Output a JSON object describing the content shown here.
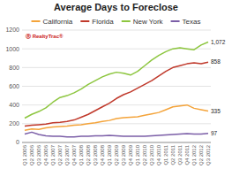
{
  "chart_data": {
    "type": "line",
    "title": "Average Days to Foreclose",
    "categories": [
      "Q1\n2006",
      "Q2\n2006",
      "Q3\n2006",
      "Q4\n2006",
      "Q1\n2007",
      "Q2\n2007",
      "Q3\n2007",
      "Q4\n2007",
      "Q1\n2008",
      "Q2\n2008",
      "Q3\n2008",
      "Q4\n2008",
      "Q1\n2009",
      "Q2\n2009",
      "Q3\n2009",
      "Q4\n2009",
      "Q1\n2010",
      "Q2\n2010",
      "Q3\n2010",
      "Q4\n2010",
      "Q1\n2011",
      "Q2\n2011",
      "Q3\n2011",
      "Q4\n2011",
      "Q1\n2012",
      "Q2\n2012",
      "Q3\n2012"
    ],
    "series": [
      {
        "name": "California",
        "color": "#F4A43B",
        "values": [
          130,
          145,
          140,
          155,
          165,
          170,
          175,
          185,
          190,
          200,
          210,
          225,
          235,
          255,
          265,
          270,
          275,
          290,
          305,
          320,
          350,
          380,
          390,
          400,
          365,
          350,
          335
        ],
        "value_labels": [
          null,
          null,
          null,
          null,
          null,
          null,
          null,
          null,
          null,
          null,
          null,
          null,
          null,
          null,
          null,
          null,
          null,
          null,
          null,
          null,
          null,
          null,
          null,
          null,
          null,
          null,
          "335"
        ]
      },
      {
        "name": "Florida",
        "color": "#C0392B",
        "values": [
          175,
          185,
          190,
          195,
          210,
          215,
          225,
          240,
          270,
          300,
          340,
          380,
          420,
          470,
          510,
          540,
          580,
          620,
          660,
          710,
          760,
          800,
          820,
          840,
          850,
          840,
          858
        ],
        "value_labels": [
          null,
          null,
          null,
          null,
          null,
          null,
          null,
          null,
          null,
          null,
          null,
          null,
          null,
          null,
          null,
          null,
          null,
          null,
          null,
          null,
          null,
          null,
          null,
          null,
          null,
          null,
          "858"
        ]
      },
      {
        "name": "New York",
        "color": "#8DC63F",
        "values": [
          260,
          300,
          330,
          370,
          430,
          480,
          500,
          530,
          570,
          620,
          660,
          700,
          730,
          750,
          740,
          720,
          760,
          820,
          880,
          930,
          970,
          1000,
          1010,
          1000,
          990,
          1040,
          1072
        ],
        "value_labels": [
          null,
          null,
          null,
          null,
          null,
          null,
          null,
          null,
          null,
          null,
          null,
          null,
          null,
          null,
          null,
          null,
          null,
          null,
          null,
          null,
          null,
          null,
          null,
          null,
          null,
          null,
          "1,072"
        ]
      },
      {
        "name": "Texas",
        "color": "#7B5EA7",
        "values": [
          90,
          110,
          85,
          70,
          65,
          65,
          60,
          60,
          65,
          65,
          70,
          70,
          75,
          70,
          65,
          65,
          65,
          65,
          70,
          75,
          80,
          85,
          90,
          95,
          90,
          90,
          97
        ],
        "value_labels": [
          null,
          null,
          null,
          null,
          null,
          null,
          null,
          null,
          null,
          null,
          null,
          null,
          null,
          null,
          null,
          null,
          null,
          null,
          null,
          null,
          null,
          null,
          null,
          null,
          null,
          null,
          "97"
        ]
      }
    ],
    "ylim": [
      0,
      1200
    ],
    "yticks": [
      0,
      200,
      400,
      600,
      800,
      1000,
      1200
    ],
    "grid": true,
    "legend": "top",
    "annotations": [
      "Ⓡ RealtyTrac®"
    ]
  }
}
